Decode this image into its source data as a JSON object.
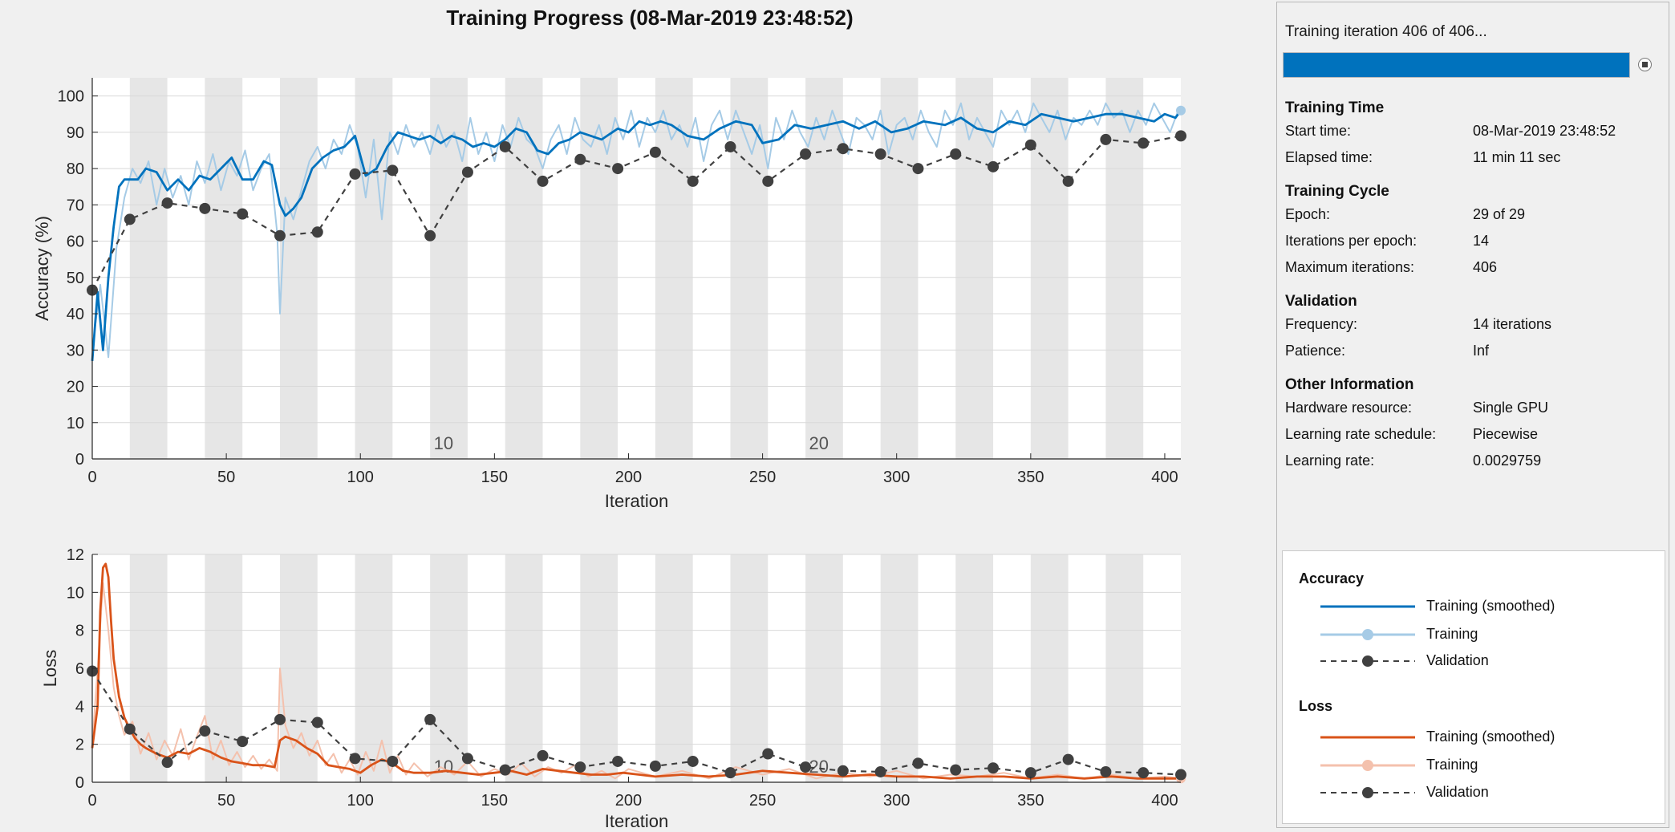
{
  "title": "Training Progress (08-Mar-2019 23:48:52)",
  "status": {
    "message": "Training iteration 406 of 406...",
    "progress_fraction": 1.0,
    "stop_icon": "stop-icon"
  },
  "info": {
    "training_time": {
      "title": "Training Time",
      "rows": [
        {
          "label": "Start time:",
          "value": "08-Mar-2019 23:48:52"
        },
        {
          "label": "Elapsed time:",
          "value": "11 min 11 sec"
        }
      ]
    },
    "training_cycle": {
      "title": "Training Cycle",
      "rows": [
        {
          "label": "Epoch:",
          "value": "29 of 29"
        },
        {
          "label": "Iterations per epoch:",
          "value": "14"
        },
        {
          "label": "Maximum iterations:",
          "value": "406"
        }
      ]
    },
    "validation": {
      "title": "Validation",
      "rows": [
        {
          "label": "Frequency:",
          "value": "14 iterations"
        },
        {
          "label": "Patience:",
          "value": "Inf"
        }
      ]
    },
    "other": {
      "title": "Other Information",
      "rows": [
        {
          "label": "Hardware resource:",
          "value": "Single GPU"
        },
        {
          "label": "Learning rate schedule:",
          "value": "Piecewise"
        },
        {
          "label": "Learning rate:",
          "value": "0.0029759"
        }
      ]
    }
  },
  "legend": {
    "accuracy": {
      "title": "Accuracy",
      "items": [
        {
          "label": "Training (smoothed)",
          "style": "solid",
          "color": "#0072bd"
        },
        {
          "label": "Training",
          "style": "light-marker",
          "color": "#a6cbe6"
        },
        {
          "label": "Validation",
          "style": "dashed-marker",
          "color": "#404040"
        }
      ]
    },
    "loss": {
      "title": "Loss",
      "items": [
        {
          "label": "Training (smoothed)",
          "style": "solid",
          "color": "#d95319"
        },
        {
          "label": "Training",
          "style": "light-marker",
          "color": "#f4c1ad"
        },
        {
          "label": "Validation",
          "style": "dashed-marker",
          "color": "#404040"
        }
      ]
    }
  },
  "colors": {
    "accuracy_smoothed": "#0072bd",
    "accuracy_raw": "#a6cbe6",
    "loss_smoothed": "#d95319",
    "loss_raw": "#f4c1ad",
    "validation": "#404040",
    "epoch_band": "#e6e6e6"
  },
  "chart_data": [
    {
      "type": "line",
      "name": "accuracy",
      "title": "Training Progress (08-Mar-2019 23:48:52)",
      "xlabel": "Iteration",
      "ylabel": "Accuracy (%)",
      "xlim": [
        0,
        406
      ],
      "ylim": [
        0,
        105
      ],
      "xticks": [
        0,
        50,
        100,
        150,
        200,
        250,
        300,
        350,
        400
      ],
      "yticks": [
        0,
        10,
        20,
        30,
        40,
        50,
        60,
        70,
        80,
        90,
        100
      ],
      "grid": true,
      "iterations_per_epoch": 14,
      "epoch_annotations": [
        {
          "epoch": "10",
          "x": 131
        },
        {
          "epoch": "20",
          "x": 271
        }
      ],
      "series": [
        {
          "name": "Training (smoothed)",
          "x": [
            0,
            2,
            4,
            6,
            8,
            10,
            12,
            14,
            17,
            20,
            24,
            28,
            32,
            36,
            40,
            44,
            48,
            52,
            56,
            60,
            64,
            67,
            70,
            72,
            75,
            78,
            82,
            86,
            90,
            94,
            98,
            102,
            106,
            110,
            114,
            118,
            122,
            126,
            130,
            134,
            138,
            142,
            146,
            150,
            154,
            158,
            162,
            166,
            170,
            174,
            178,
            182,
            186,
            190,
            196,
            200,
            204,
            208,
            212,
            216,
            222,
            228,
            234,
            240,
            246,
            250,
            256,
            262,
            268,
            274,
            280,
            286,
            292,
            298,
            304,
            310,
            318,
            324,
            330,
            336,
            342,
            348,
            354,
            360,
            366,
            372,
            378,
            384,
            390,
            396,
            400,
            404,
            406
          ],
          "values": [
            27,
            46,
            30,
            50,
            64,
            75,
            77,
            77,
            77,
            80,
            79,
            74,
            77,
            74,
            78,
            77,
            80,
            83,
            77,
            77,
            82,
            81,
            70,
            67,
            69,
            72,
            80,
            83,
            85,
            86,
            89,
            78,
            80,
            86,
            90,
            89,
            88,
            89,
            87,
            89,
            88,
            86,
            87,
            86,
            88,
            91,
            90,
            85,
            84,
            87,
            88,
            90,
            89,
            88,
            91,
            90,
            93,
            92,
            93,
            92,
            89,
            88,
            91,
            93,
            92,
            87,
            88,
            92,
            91,
            92,
            93,
            91,
            93,
            90,
            91,
            93,
            92,
            94,
            91,
            90,
            93,
            92,
            95,
            94,
            93,
            94,
            95,
            95,
            94,
            93,
            95,
            94,
            96
          ]
        },
        {
          "name": "Training",
          "description": "raw per-iteration values, shown as a light noisy line",
          "x": [
            0,
            3,
            6,
            9,
            12,
            15,
            18,
            21,
            24,
            27,
            30,
            33,
            36,
            39,
            42,
            45,
            48,
            51,
            54,
            57,
            60,
            63,
            66,
            69,
            70,
            72,
            75,
            78,
            81,
            84,
            87,
            90,
            93,
            96,
            99,
            102,
            105,
            108,
            111,
            114,
            117,
            120,
            123,
            126,
            129,
            132,
            135,
            138,
            141,
            144,
            147,
            150,
            153,
            156,
            159,
            162,
            165,
            168,
            171,
            174,
            177,
            180,
            183,
            186,
            189,
            192,
            195,
            198,
            201,
            204,
            207,
            210,
            213,
            216,
            219,
            222,
            225,
            228,
            231,
            234,
            237,
            240,
            243,
            246,
            249,
            252,
            255,
            258,
            261,
            264,
            267,
            270,
            273,
            276,
            279,
            282,
            285,
            288,
            291,
            294,
            297,
            300,
            303,
            306,
            309,
            312,
            315,
            318,
            321,
            324,
            327,
            330,
            333,
            336,
            339,
            342,
            345,
            348,
            351,
            354,
            357,
            360,
            363,
            366,
            369,
            372,
            375,
            378,
            381,
            384,
            387,
            390,
            393,
            396,
            399,
            402,
            405,
            406
          ],
          "values": [
            30,
            48,
            28,
            58,
            72,
            80,
            76,
            82,
            70,
            80,
            72,
            78,
            70,
            82,
            76,
            84,
            74,
            82,
            78,
            85,
            74,
            80,
            84,
            62,
            40,
            72,
            66,
            74,
            82,
            86,
            80,
            88,
            84,
            92,
            86,
            72,
            88,
            66,
            90,
            84,
            92,
            86,
            90,
            84,
            92,
            86,
            90,
            82,
            94,
            84,
            90,
            82,
            92,
            86,
            94,
            88,
            86,
            80,
            88,
            92,
            84,
            94,
            88,
            86,
            92,
            84,
            94,
            88,
            96,
            86,
            94,
            90,
            96,
            88,
            92,
            86,
            94,
            82,
            92,
            96,
            88,
            96,
            90,
            84,
            92,
            80,
            94,
            88,
            96,
            90,
            86,
            94,
            88,
            96,
            90,
            84,
            94,
            92,
            88,
            96,
            84,
            92,
            94,
            88,
            96,
            90,
            86,
            96,
            92,
            98,
            88,
            94,
            90,
            86,
            96,
            92,
            96,
            90,
            98,
            94,
            90,
            96,
            88,
            94,
            92,
            96,
            92,
            98,
            94,
            96,
            90,
            96,
            92,
            98,
            94,
            90,
            96,
            96
          ]
        },
        {
          "name": "Validation",
          "x": [
            0,
            14,
            28,
            42,
            56,
            70,
            84,
            98,
            112,
            126,
            140,
            154,
            168,
            182,
            196,
            210,
            224,
            238,
            252,
            266,
            280,
            294,
            308,
            322,
            336,
            350,
            364,
            378,
            392,
            406
          ],
          "values": [
            46.5,
            66,
            70.5,
            69,
            67.5,
            61.5,
            62.5,
            78.5,
            79.5,
            61.5,
            79,
            86,
            76.5,
            82.5,
            80,
            84.5,
            76.5,
            86,
            76.5,
            84,
            85.5,
            84,
            80,
            84,
            80.5,
            86.5,
            76.5,
            88,
            87,
            89
          ]
        }
      ]
    },
    {
      "type": "line",
      "name": "loss",
      "xlabel": "Iteration",
      "ylabel": "Loss",
      "xlim": [
        0,
        406
      ],
      "ylim": [
        0,
        12
      ],
      "xticks": [
        0,
        50,
        100,
        150,
        200,
        250,
        300,
        350,
        400
      ],
      "yticks": [
        0,
        2,
        4,
        6,
        8,
        10,
        12
      ],
      "grid": true,
      "iterations_per_epoch": 14,
      "epoch_annotations": [
        {
          "epoch": "10",
          "x": 131
        },
        {
          "epoch": "20",
          "x": 271
        }
      ],
      "series": [
        {
          "name": "Training (smoothed)",
          "x": [
            0,
            2,
            3,
            4,
            5,
            6,
            7,
            8,
            10,
            12,
            14,
            16,
            18,
            20,
            24,
            28,
            32,
            36,
            40,
            44,
            48,
            52,
            56,
            60,
            64,
            68,
            70,
            72,
            76,
            80,
            84,
            88,
            92,
            96,
            100,
            104,
            108,
            112,
            116,
            120,
            126,
            132,
            138,
            144,
            150,
            156,
            162,
            168,
            174,
            180,
            186,
            192,
            198,
            204,
            210,
            220,
            230,
            240,
            250,
            260,
            270,
            280,
            290,
            300,
            310,
            320,
            330,
            340,
            350,
            360,
            370,
            380,
            390,
            400,
            406
          ],
          "values": [
            1.8,
            4,
            9,
            11.3,
            11.5,
            10.8,
            8.5,
            6.5,
            4.5,
            3.4,
            2.8,
            2.3,
            2,
            1.8,
            1.5,
            1.3,
            1.6,
            1.5,
            1.8,
            1.6,
            1.3,
            1.1,
            1,
            0.9,
            0.9,
            0.8,
            2.2,
            2.4,
            2.2,
            1.8,
            1.5,
            0.9,
            0.8,
            0.7,
            0.5,
            0.9,
            1.2,
            1,
            0.6,
            0.5,
            0.5,
            0.6,
            0.5,
            0.4,
            0.5,
            0.6,
            0.4,
            0.7,
            0.6,
            0.5,
            0.4,
            0.4,
            0.5,
            0.4,
            0.3,
            0.4,
            0.3,
            0.4,
            0.6,
            0.5,
            0.4,
            0.3,
            0.4,
            0.3,
            0.3,
            0.2,
            0.3,
            0.3,
            0.2,
            0.3,
            0.2,
            0.3,
            0.2,
            0.2,
            0.2
          ]
        },
        {
          "name": "Training",
          "description": "raw per-iteration values, shown as a light noisy line",
          "x": [
            0,
            2,
            4,
            6,
            8,
            10,
            12,
            15,
            18,
            21,
            24,
            27,
            30,
            33,
            36,
            39,
            42,
            45,
            48,
            51,
            54,
            57,
            60,
            63,
            66,
            69,
            70,
            72,
            75,
            78,
            81,
            84,
            87,
            90,
            93,
            96,
            99,
            102,
            105,
            108,
            111,
            114,
            117,
            120,
            125,
            130,
            135,
            140,
            145,
            150,
            155,
            160,
            165,
            170,
            175,
            180,
            185,
            190,
            195,
            200,
            210,
            220,
            230,
            240,
            250,
            260,
            270,
            280,
            290,
            300,
            310,
            320,
            330,
            340,
            350,
            360,
            370,
            380,
            390,
            400,
            406
          ],
          "values": [
            2,
            6,
            10.5,
            8,
            5,
            3.5,
            2.5,
            3.2,
            1.5,
            2.6,
            1.2,
            2.2,
            1.4,
            2.8,
            1.2,
            2.4,
            3.5,
            1.2,
            2.2,
            0.9,
            1.6,
            0.8,
            1.4,
            0.7,
            1.2,
            0.6,
            6,
            3,
            1.8,
            2.6,
            1.4,
            2.2,
            0.9,
            1.5,
            0.5,
            1.2,
            0.4,
            1.6,
            0.6,
            2.2,
            0.5,
            1.4,
            0.4,
            1,
            0.3,
            0.8,
            0.4,
            1.1,
            0.3,
            0.7,
            0.4,
            1,
            0.3,
            0.8,
            0.5,
            0.9,
            0.3,
            0.6,
            0.2,
            0.7,
            0.3,
            0.6,
            0.2,
            0.8,
            0.4,
            0.7,
            0.2,
            0.5,
            0.3,
            0.6,
            0.2,
            0.4,
            0.3,
            0.5,
            0.2,
            0.4,
            0.2,
            0.4,
            0.2,
            0.3,
            0.2
          ]
        },
        {
          "name": "Validation",
          "x": [
            0,
            14,
            28,
            42,
            56,
            70,
            84,
            98,
            112,
            126,
            140,
            154,
            168,
            182,
            196,
            210,
            224,
            238,
            252,
            266,
            280,
            294,
            308,
            322,
            336,
            350,
            364,
            378,
            392,
            406
          ],
          "values": [
            5.85,
            2.8,
            1.05,
            2.7,
            2.15,
            3.3,
            3.15,
            1.25,
            1.1,
            3.3,
            1.25,
            0.65,
            1.4,
            0.8,
            1.1,
            0.85,
            1.1,
            0.5,
            1.5,
            0.8,
            0.6,
            0.55,
            1.0,
            0.65,
            0.75,
            0.5,
            1.2,
            0.55,
            0.5,
            0.4
          ]
        }
      ]
    }
  ]
}
